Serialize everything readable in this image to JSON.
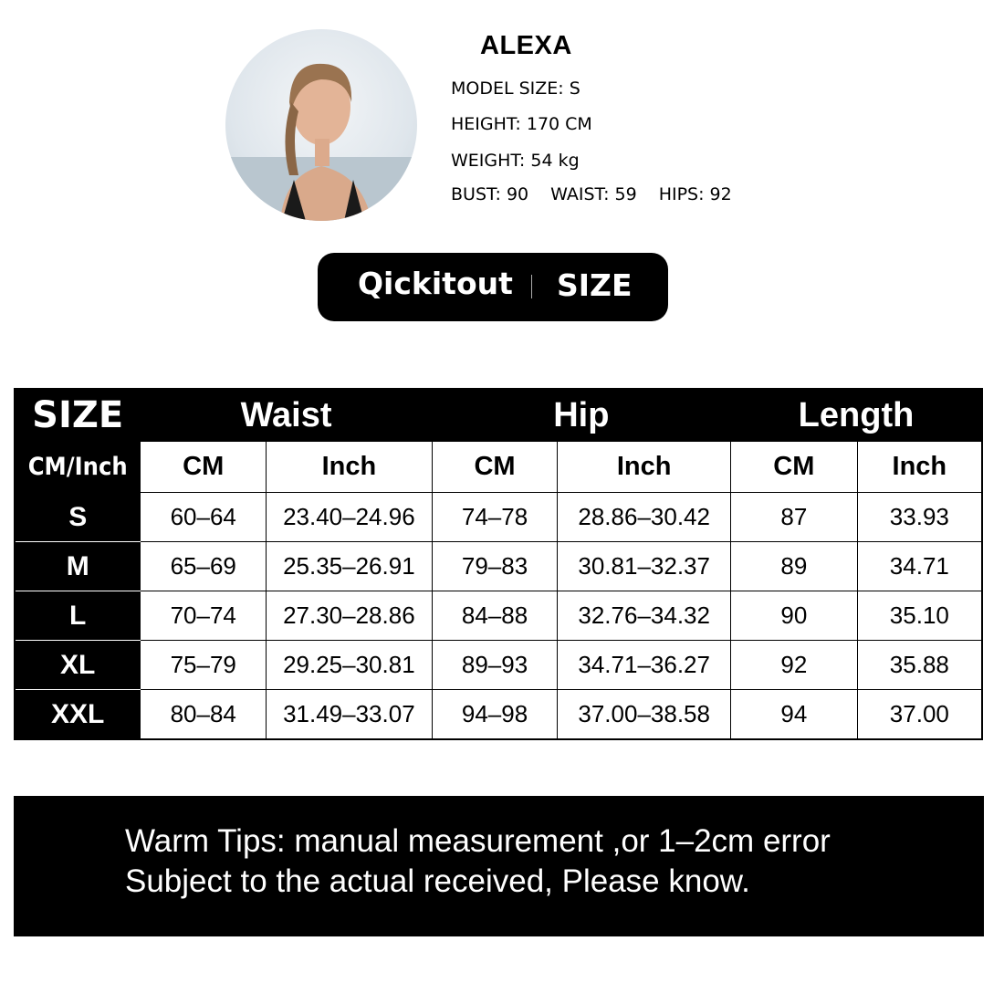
{
  "model": {
    "name": "ALEXA",
    "model_size": "MODEL SIZE: S",
    "height": "HEIGHT: 170 CM",
    "weight": "WEIGHT: 54 kg",
    "bust": "BUST: 90",
    "waist": "WAIST: 59",
    "hips": "HIPS: 92"
  },
  "banner": {
    "brand": "Qickitout",
    "label": "SIZE"
  },
  "table": {
    "size_header": "SIZE",
    "groups": [
      "Waist",
      "Hip",
      "Length"
    ],
    "unit_header": "CM/Inch",
    "units": [
      "CM",
      "Inch",
      "CM",
      "Inch",
      "CM",
      "Inch"
    ],
    "rows": [
      {
        "size": "S",
        "cells": [
          "60–64",
          "23.40–24.96",
          "74–78",
          "28.86–30.42",
          "87",
          "33.93"
        ]
      },
      {
        "size": "M",
        "cells": [
          "65–69",
          "25.35–26.91",
          "79–83",
          "30.81–32.37",
          "89",
          "34.71"
        ]
      },
      {
        "size": "L",
        "cells": [
          "70–74",
          "27.30–28.86",
          "84–88",
          "32.76–34.32",
          "90",
          "35.10"
        ]
      },
      {
        "size": "XL",
        "cells": [
          "75–79",
          "29.25–30.81",
          "89–93",
          "34.71–36.27",
          "92",
          "35.88"
        ]
      },
      {
        "size": "XXL",
        "cells": [
          "80–84",
          "31.49–33.07",
          "94–98",
          "37.00–38.58",
          "94",
          "37.00"
        ]
      }
    ]
  },
  "tips": {
    "line1": "Warm Tips: manual measurement ,or 1–2cm error",
    "line2": "Subject to the actual received, Please know."
  }
}
